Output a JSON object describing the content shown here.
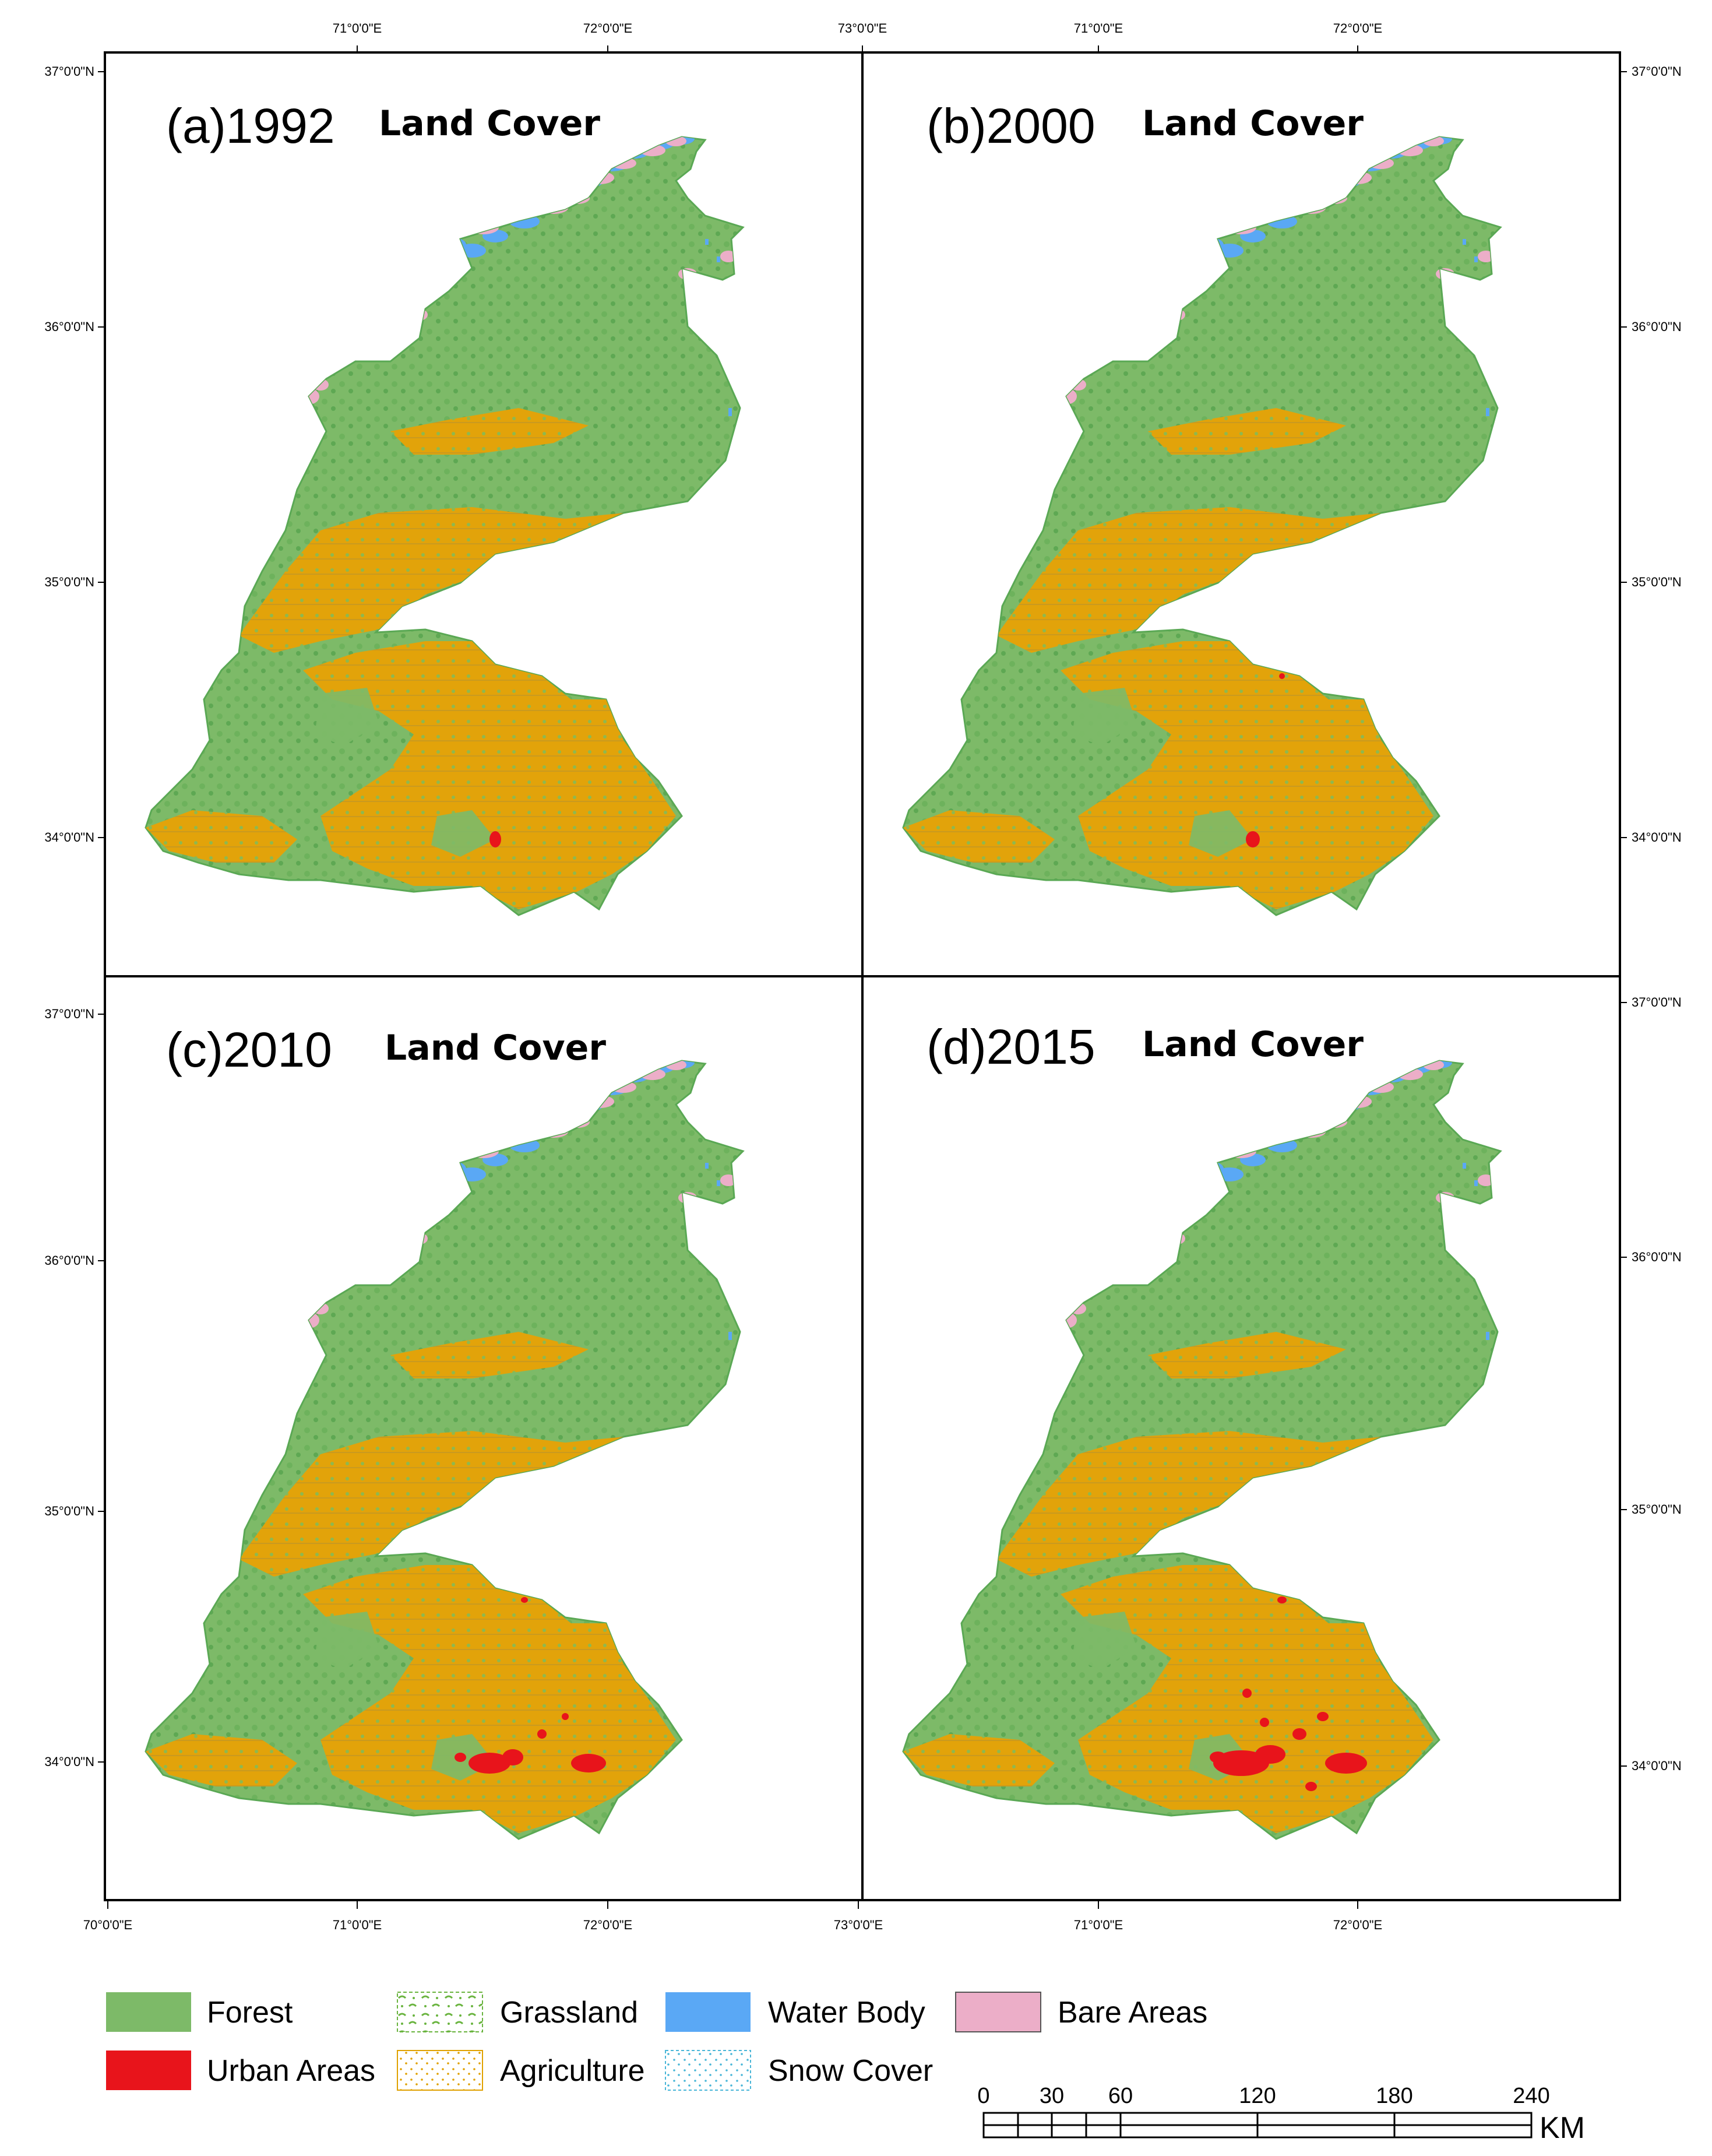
{
  "colors": {
    "forest": "#7dba68",
    "forest_dark": "#5aa854",
    "urban": "#e8141b",
    "grassland_stroke": "#6ab43f",
    "agriculture": "#e0a100",
    "water": "#5aa8f5",
    "snow_stroke": "#49b6d8",
    "bare": "#ecaec8"
  },
  "panels": [
    {
      "label": "(a)1992",
      "subtitle": "Land Cover"
    },
    {
      "label": "(b)2000",
      "subtitle": "Land Cover"
    },
    {
      "label": "(c)2010",
      "subtitle": "Land Cover"
    },
    {
      "label": "(d)2015",
      "subtitle": "Land Cover"
    }
  ],
  "axes": {
    "top_left_lon": [
      "71°0'0\"E",
      "72°0'0\"E",
      "73°0'0\"E"
    ],
    "top_right_lon": [
      "71°0'0\"E",
      "72°0'0\"E"
    ],
    "bottom_left_lon": [
      "70°0'0\"E",
      "71°0'0\"E",
      "72°0'0\"E",
      "73°0'0\"E"
    ],
    "bottom_right_lon": [
      "71°0'0\"E",
      "72°0'0\"E"
    ],
    "lat": [
      "37°0'0\"N",
      "36°0'0\"N",
      "35°0'0\"N",
      "34°0'0\"N"
    ]
  },
  "legend": [
    {
      "label": "Forest",
      "icon": "forest-swatch"
    },
    {
      "label": "Grassland",
      "icon": "grassland-swatch"
    },
    {
      "label": "Water Body",
      "icon": "water-swatch"
    },
    {
      "label": "Bare Areas",
      "icon": "bare-swatch"
    },
    {
      "label": "Urban Areas",
      "icon": "urban-swatch"
    },
    {
      "label": "Agriculture",
      "icon": "agriculture-swatch"
    },
    {
      "label": "Snow Cover",
      "icon": "snow-swatch"
    }
  ],
  "scale_bar": {
    "ticks": [
      "0",
      "30",
      "60",
      "120",
      "180",
      "240"
    ],
    "unit": "KM"
  }
}
